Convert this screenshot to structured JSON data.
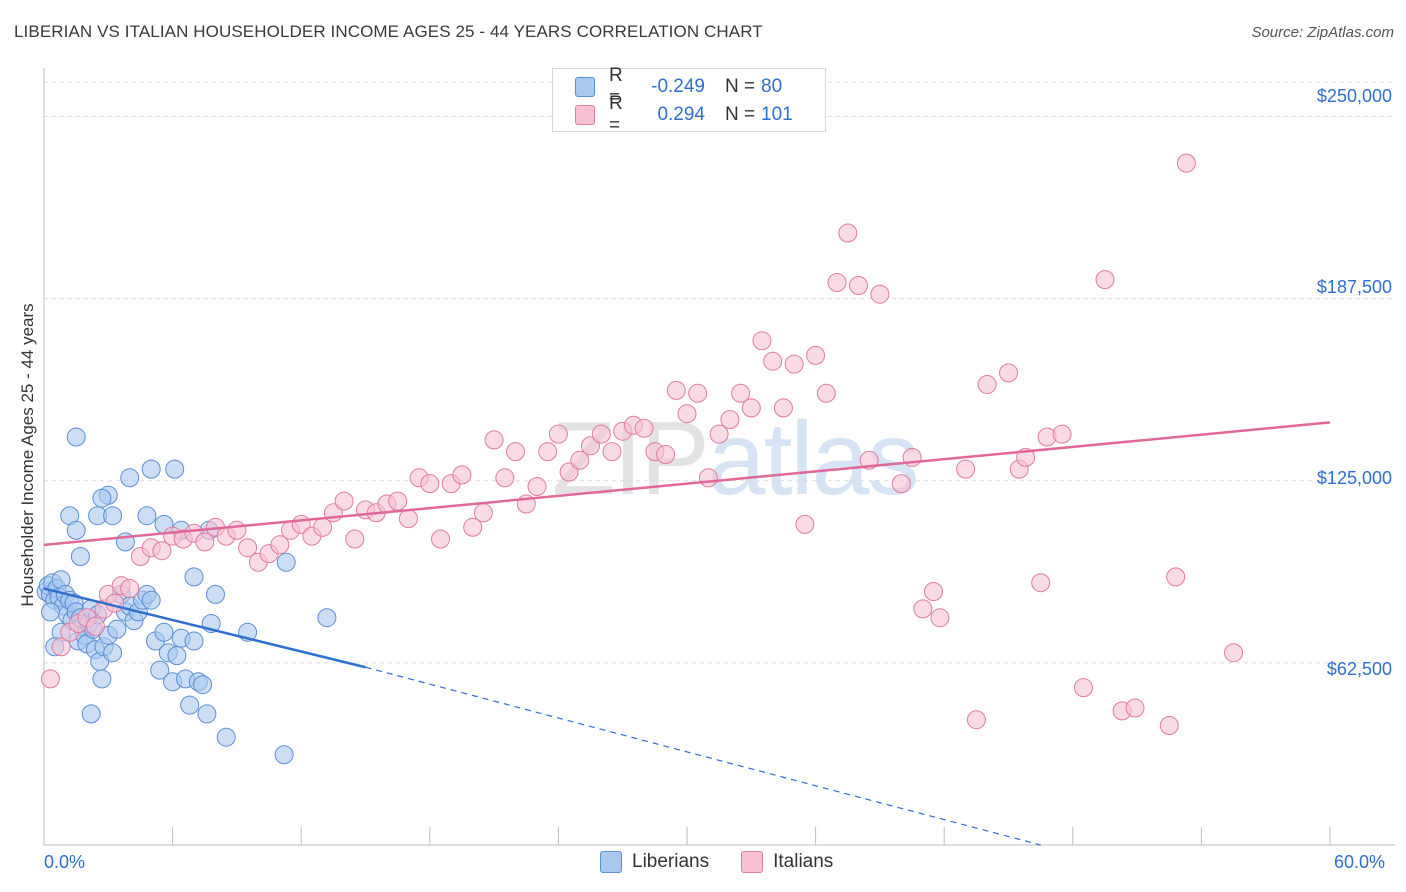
{
  "header": {
    "title": "LIBERIAN VS ITALIAN HOUSEHOLDER INCOME AGES 25 - 44 YEARS CORRELATION CHART",
    "source": "Source: ZipAtlas.com"
  },
  "watermark": {
    "zip": "ZIP",
    "atlas": "atlas"
  },
  "legend": {
    "rows": [
      {
        "r_label": "R =",
        "r_value": "-0.249",
        "n_label": "N =",
        "n_value": "80",
        "color": "#a9c8f0",
        "border": "#5b8fd6"
      },
      {
        "r_label": "R =",
        "r_value": "0.294",
        "n_label": "N =",
        "n_value": "101",
        "color": "#f7c1d3",
        "border": "#e27ba0"
      }
    ]
  },
  "bottom_legend": [
    {
      "label": "Liberians",
      "color": "#a9c8f0",
      "border": "#5b8fd6"
    },
    {
      "label": "Italians",
      "color": "#f7c1d3",
      "border": "#e27ba0"
    }
  ],
  "axes": {
    "ylabel": "Householder Income Ages 25 - 44 years",
    "x_min_label": "0.0%",
    "x_max_label": "60.0%",
    "y_ticks": [
      "$250,000",
      "$187,500",
      "$125,000",
      "$62,500"
    ]
  },
  "chart_data": {
    "type": "scatter",
    "title": "LIBERIAN VS ITALIAN HOUSEHOLDER INCOME AGES 25 - 44 YEARS CORRELATION CHART",
    "xlabel": "",
    "ylabel": "Householder Income Ages 25 - 44 years",
    "xlim": [
      0,
      60
    ],
    "ylim": [
      0,
      262500
    ],
    "y_ticks": [
      62500,
      125000,
      187500,
      250000
    ],
    "grid": true,
    "series": [
      {
        "name": "Liberians",
        "color": "#5b8fd6",
        "fill": "#a9c8f0",
        "trend": {
          "x0": 0,
          "y0": 88000,
          "x1": 15,
          "y1": 61000,
          "dashed_to_x": 46.5,
          "dashed_to_y": 0
        },
        "points": [
          [
            0.1,
            87000
          ],
          [
            0.2,
            89000
          ],
          [
            0.3,
            86000
          ],
          [
            0.4,
            90000
          ],
          [
            0.5,
            84000
          ],
          [
            0.6,
            88000
          ],
          [
            0.7,
            85000
          ],
          [
            0.8,
            91000
          ],
          [
            0.9,
            82000
          ],
          [
            1.0,
            86000
          ],
          [
            1.1,
            79000
          ],
          [
            1.2,
            84000
          ],
          [
            1.3,
            77000
          ],
          [
            1.4,
            83000
          ],
          [
            1.5,
            80000
          ],
          [
            1.6,
            70000
          ],
          [
            1.7,
            78000
          ],
          [
            1.8,
            75000
          ],
          [
            1.9,
            72000
          ],
          [
            2.0,
            69000
          ],
          [
            2.1,
            76000
          ],
          [
            2.2,
            81000
          ],
          [
            2.3,
            74000
          ],
          [
            2.4,
            67000
          ],
          [
            2.5,
            79000
          ],
          [
            2.6,
            63000
          ],
          [
            2.7,
            57000
          ],
          [
            2.8,
            68000
          ],
          [
            3.0,
            72000
          ],
          [
            3.2,
            66000
          ],
          [
            3.4,
            74000
          ],
          [
            3.6,
            86000
          ],
          [
            3.8,
            80000
          ],
          [
            4.0,
            82000
          ],
          [
            4.2,
            77000
          ],
          [
            4.4,
            80000
          ],
          [
            4.6,
            84000
          ],
          [
            4.8,
            86000
          ],
          [
            5.0,
            84000
          ],
          [
            5.2,
            70000
          ],
          [
            5.4,
            60000
          ],
          [
            5.6,
            73000
          ],
          [
            5.8,
            66000
          ],
          [
            6.0,
            56000
          ],
          [
            6.2,
            65000
          ],
          [
            6.4,
            71000
          ],
          [
            6.6,
            57000
          ],
          [
            6.8,
            48000
          ],
          [
            7.0,
            70000
          ],
          [
            7.2,
            56000
          ],
          [
            7.4,
            55000
          ],
          [
            7.6,
            45000
          ],
          [
            7.8,
            76000
          ],
          [
            8.0,
            86000
          ],
          [
            8.5,
            37000
          ],
          [
            9.5,
            73000
          ],
          [
            11.2,
            31000
          ],
          [
            11.3,
            97000
          ],
          [
            13.2,
            78000
          ],
          [
            1.2,
            113000
          ],
          [
            1.5,
            108000
          ],
          [
            1.7,
            99000
          ],
          [
            2.5,
            113000
          ],
          [
            3.0,
            120000
          ],
          [
            2.7,
            119000
          ],
          [
            3.2,
            113000
          ],
          [
            3.8,
            104000
          ],
          [
            4.0,
            126000
          ],
          [
            4.8,
            113000
          ],
          [
            5.0,
            129000
          ],
          [
            6.1,
            129000
          ],
          [
            6.4,
            108000
          ],
          [
            7.7,
            108000
          ],
          [
            5.6,
            110000
          ],
          [
            1.5,
            140000
          ],
          [
            0.8,
            73000
          ],
          [
            0.5,
            68000
          ],
          [
            2.2,
            45000
          ],
          [
            7.0,
            92000
          ],
          [
            0.3,
            80000
          ]
        ]
      },
      {
        "name": "Italians",
        "color": "#e27ba0",
        "fill": "#f7c1d3",
        "trend": {
          "x0": 0,
          "y0": 103000,
          "x1": 60,
          "y1": 145000
        },
        "points": [
          [
            0.3,
            57000
          ],
          [
            0.8,
            68000
          ],
          [
            1.2,
            73000
          ],
          [
            1.6,
            76000
          ],
          [
            2.0,
            78000
          ],
          [
            2.4,
            75000
          ],
          [
            2.8,
            81000
          ],
          [
            3.0,
            86000
          ],
          [
            3.3,
            83000
          ],
          [
            3.6,
            89000
          ],
          [
            4.0,
            88000
          ],
          [
            4.5,
            99000
          ],
          [
            5.0,
            102000
          ],
          [
            5.5,
            101000
          ],
          [
            6.0,
            106000
          ],
          [
            6.5,
            105000
          ],
          [
            7.0,
            107000
          ],
          [
            7.5,
            104000
          ],
          [
            8.0,
            109000
          ],
          [
            8.5,
            106000
          ],
          [
            9.0,
            108000
          ],
          [
            9.5,
            102000
          ],
          [
            10.0,
            97000
          ],
          [
            10.5,
            100000
          ],
          [
            11.0,
            103000
          ],
          [
            11.5,
            108000
          ],
          [
            12.0,
            110000
          ],
          [
            12.5,
            106000
          ],
          [
            13.0,
            109000
          ],
          [
            13.5,
            114000
          ],
          [
            14.0,
            118000
          ],
          [
            14.5,
            105000
          ],
          [
            15.0,
            115000
          ],
          [
            15.5,
            114000
          ],
          [
            16.0,
            117000
          ],
          [
            16.5,
            118000
          ],
          [
            17.0,
            112000
          ],
          [
            17.5,
            126000
          ],
          [
            18.0,
            124000
          ],
          [
            18.5,
            105000
          ],
          [
            19.0,
            124000
          ],
          [
            19.5,
            127000
          ],
          [
            20.0,
            109000
          ],
          [
            20.5,
            114000
          ],
          [
            21.0,
            139000
          ],
          [
            21.5,
            126000
          ],
          [
            22.0,
            135000
          ],
          [
            22.5,
            117000
          ],
          [
            23.0,
            123000
          ],
          [
            23.5,
            135000
          ],
          [
            24.0,
            141000
          ],
          [
            24.5,
            128000
          ],
          [
            25.0,
            132000
          ],
          [
            25.5,
            137000
          ],
          [
            26.0,
            141000
          ],
          [
            26.5,
            135000
          ],
          [
            27.0,
            142000
          ],
          [
            27.5,
            144000
          ],
          [
            28.0,
            143000
          ],
          [
            28.5,
            135000
          ],
          [
            29.0,
            134000
          ],
          [
            29.5,
            156000
          ],
          [
            30.0,
            148000
          ],
          [
            30.5,
            155000
          ],
          [
            31.0,
            126000
          ],
          [
            31.5,
            141000
          ],
          [
            32.0,
            146000
          ],
          [
            32.5,
            155000
          ],
          [
            33.0,
            150000
          ],
          [
            33.5,
            173000
          ],
          [
            34.0,
            166000
          ],
          [
            34.5,
            150000
          ],
          [
            35.0,
            165000
          ],
          [
            35.5,
            110000
          ],
          [
            36.0,
            168000
          ],
          [
            36.5,
            155000
          ],
          [
            37.0,
            193000
          ],
          [
            37.5,
            210000
          ],
          [
            38.0,
            192000
          ],
          [
            38.5,
            132000
          ],
          [
            39.0,
            189000
          ],
          [
            40.0,
            124000
          ],
          [
            40.5,
            133000
          ],
          [
            41.0,
            81000
          ],
          [
            41.5,
            87000
          ],
          [
            41.8,
            78000
          ],
          [
            43.0,
            129000
          ],
          [
            43.5,
            43000
          ],
          [
            44.0,
            158000
          ],
          [
            45.0,
            162000
          ],
          [
            45.5,
            129000
          ],
          [
            45.8,
            133000
          ],
          [
            46.5,
            90000
          ],
          [
            46.8,
            140000
          ],
          [
            47.5,
            141000
          ],
          [
            48.5,
            54000
          ],
          [
            49.5,
            194000
          ],
          [
            50.3,
            46000
          ],
          [
            50.9,
            47000
          ],
          [
            52.5,
            41000
          ],
          [
            52.8,
            92000
          ],
          [
            53.3,
            234000
          ],
          [
            55.5,
            66000
          ]
        ]
      }
    ]
  }
}
